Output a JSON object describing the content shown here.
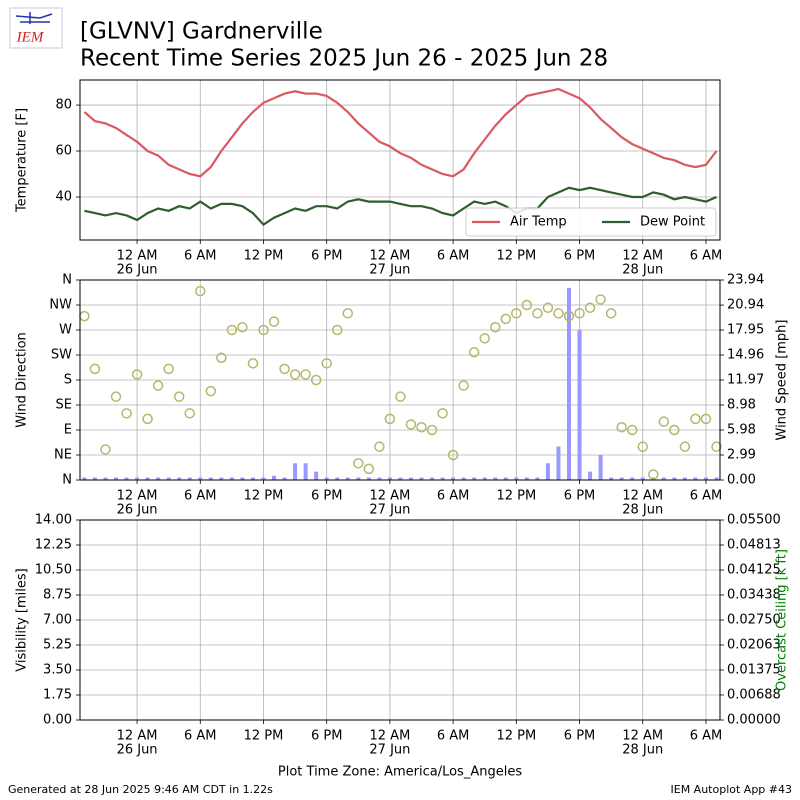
{
  "header": {
    "logo": "IEM",
    "title": "[GLVNV] Gardnerville",
    "subtitle": "Recent Time Series 2025 Jun 26 - 2025 Jun 28"
  },
  "footer": {
    "left": "Generated at 28 Jun 2025 9:46 AM CDT in 1.22s",
    "right": "IEM Autoplot App #43"
  },
  "chart_data": [
    {
      "type": "line",
      "ylabel": "Temperature [F]",
      "grid": true,
      "legend": "lower right",
      "xlim": [
        "2025-06-25T18:35",
        "2025-06-28T07:20"
      ],
      "ylim": [
        21.3,
        90.9
      ],
      "yticks": [
        40,
        60,
        80
      ],
      "xticks": [
        {
          "value": "2025-06-26T00:00",
          "label": [
            "12 AM",
            "26 Jun"
          ]
        },
        {
          "value": "2025-06-26T06:00",
          "label": "6 AM"
        },
        {
          "value": "2025-06-26T12:00",
          "label": "12 PM"
        },
        {
          "value": "2025-06-26T18:00",
          "label": "6 PM"
        },
        {
          "value": "2025-06-27T00:00",
          "label": [
            "12 AM",
            "27 Jun"
          ]
        },
        {
          "value": "2025-06-27T06:00",
          "label": "6 AM"
        },
        {
          "value": "2025-06-27T12:00",
          "label": "12 PM"
        },
        {
          "value": "2025-06-27T18:00",
          "label": "6 PM"
        },
        {
          "value": "2025-06-28T00:00",
          "label": [
            "12 AM",
            "28 Jun"
          ]
        },
        {
          "value": "2025-06-28T06:00",
          "label": "6 AM"
        }
      ],
      "x": [
        "2025-06-25T19:00",
        "2025-06-25T20:00",
        "2025-06-25T21:00",
        "2025-06-25T22:00",
        "2025-06-25T23:00",
        "2025-06-26T00:00",
        "2025-06-26T01:00",
        "2025-06-26T02:00",
        "2025-06-26T03:00",
        "2025-06-26T04:00",
        "2025-06-26T05:00",
        "2025-06-26T06:00",
        "2025-06-26T07:00",
        "2025-06-26T08:00",
        "2025-06-26T09:00",
        "2025-06-26T10:00",
        "2025-06-26T11:00",
        "2025-06-26T12:00",
        "2025-06-26T13:00",
        "2025-06-26T14:00",
        "2025-06-26T15:00",
        "2025-06-26T16:00",
        "2025-06-26T17:00",
        "2025-06-26T18:00",
        "2025-06-26T19:00",
        "2025-06-26T20:00",
        "2025-06-26T21:00",
        "2025-06-26T22:00",
        "2025-06-26T23:00",
        "2025-06-27T00:00",
        "2025-06-27T01:00",
        "2025-06-27T02:00",
        "2025-06-27T03:00",
        "2025-06-27T04:00",
        "2025-06-27T05:00",
        "2025-06-27T06:00",
        "2025-06-27T07:00",
        "2025-06-27T08:00",
        "2025-06-27T09:00",
        "2025-06-27T10:00",
        "2025-06-27T11:00",
        "2025-06-27T12:00",
        "2025-06-27T13:00",
        "2025-06-27T14:00",
        "2025-06-27T15:00",
        "2025-06-27T16:00",
        "2025-06-27T17:00",
        "2025-06-27T18:00",
        "2025-06-27T19:00",
        "2025-06-27T20:00",
        "2025-06-27T21:00",
        "2025-06-27T22:00",
        "2025-06-27T23:00",
        "2025-06-28T00:00",
        "2025-06-28T01:00",
        "2025-06-28T02:00",
        "2025-06-28T03:00",
        "2025-06-28T04:00",
        "2025-06-28T05:00",
        "2025-06-28T06:00",
        "2025-06-28T07:00"
      ],
      "series": [
        {
          "name": "Air Temp",
          "color": "#d9595f",
          "values": [
            77,
            73,
            72,
            70,
            67,
            64,
            60,
            58,
            54,
            52,
            50,
            49,
            53,
            60,
            66,
            72,
            77,
            81,
            83,
            85,
            86,
            85,
            85,
            84,
            81,
            77,
            72,
            68,
            64,
            62,
            59,
            57,
            54,
            52,
            50,
            49,
            52,
            59,
            65,
            71,
            76,
            80,
            84,
            85,
            86,
            87,
            85,
            83,
            79,
            74,
            70,
            66,
            63,
            61,
            59,
            57,
            56,
            54,
            53,
            54,
            60
          ]
        },
        {
          "name": "Dew Point",
          "color": "#2e5e2e",
          "values": [
            34,
            33,
            32,
            33,
            32,
            30,
            33,
            35,
            34,
            36,
            35,
            38,
            35,
            37,
            37,
            36,
            33,
            28,
            31,
            33,
            35,
            34,
            36,
            36,
            35,
            38,
            39,
            38,
            38,
            38,
            37,
            36,
            36,
            35,
            33,
            32,
            35,
            38,
            37,
            38,
            36,
            33,
            35,
            35,
            40,
            42,
            44,
            43,
            44,
            43,
            42,
            41,
            40,
            40,
            42,
            41,
            39,
            40,
            39,
            38,
            40
          ]
        }
      ]
    },
    {
      "type": "scatter",
      "ylabel": "Wind Direction",
      "y2label": "Wind Speed [mph]",
      "grid": true,
      "xlim": [
        "2025-06-25T18:35",
        "2025-06-28T07:20"
      ],
      "ylim": [
        0,
        360
      ],
      "yticks": [
        {
          "value": 0,
          "label": "N"
        },
        {
          "value": 45,
          "label": "NE"
        },
        {
          "value": 90,
          "label": "E"
        },
        {
          "value": 135,
          "label": "SE"
        },
        {
          "value": 180,
          "label": "S"
        },
        {
          "value": 225,
          "label": "SW"
        },
        {
          "value": 270,
          "label": "W"
        },
        {
          "value": 315,
          "label": "NW"
        },
        {
          "value": 360,
          "label": "N"
        }
      ],
      "y2lim": [
        0,
        23.94
      ],
      "y2ticks": [
        {
          "value": 0,
          "label": "0.00"
        },
        2.99,
        5.98,
        8.98,
        11.97,
        14.96,
        17.95,
        20.94,
        23.94
      ],
      "xticks": [
        {
          "value": "2025-06-26T00:00",
          "label": [
            "12 AM",
            "26 Jun"
          ]
        },
        {
          "value": "2025-06-26T06:00",
          "label": "6 AM"
        },
        {
          "value": "2025-06-26T12:00",
          "label": "12 PM"
        },
        {
          "value": "2025-06-26T18:00",
          "label": "6 PM"
        },
        {
          "value": "2025-06-27T00:00",
          "label": [
            "12 AM",
            "27 Jun"
          ]
        },
        {
          "value": "2025-06-27T06:00",
          "label": "6 AM"
        },
        {
          "value": "2025-06-27T12:00",
          "label": "12 PM"
        },
        {
          "value": "2025-06-27T18:00",
          "label": "6 PM"
        },
        {
          "value": "2025-06-28T00:00",
          "label": [
            "12 AM",
            "28 Jun"
          ]
        },
        {
          "value": "2025-06-28T06:00",
          "label": "6 AM"
        }
      ],
      "x": [
        "2025-06-25T19:00",
        "2025-06-25T20:00",
        "2025-06-25T21:00",
        "2025-06-25T22:00",
        "2025-06-25T23:00",
        "2025-06-26T00:00",
        "2025-06-26T01:00",
        "2025-06-26T02:00",
        "2025-06-26T03:00",
        "2025-06-26T04:00",
        "2025-06-26T05:00",
        "2025-06-26T06:00",
        "2025-06-26T07:00",
        "2025-06-26T08:00",
        "2025-06-26T09:00",
        "2025-06-26T10:00",
        "2025-06-26T11:00",
        "2025-06-26T12:00",
        "2025-06-26T13:00",
        "2025-06-26T14:00",
        "2025-06-26T15:00",
        "2025-06-26T16:00",
        "2025-06-26T17:00",
        "2025-06-26T18:00",
        "2025-06-26T19:00",
        "2025-06-26T20:00",
        "2025-06-26T21:00",
        "2025-06-26T22:00",
        "2025-06-26T23:00",
        "2025-06-27T00:00",
        "2025-06-27T01:00",
        "2025-06-27T02:00",
        "2025-06-27T03:00",
        "2025-06-27T04:00",
        "2025-06-27T05:00",
        "2025-06-27T06:00",
        "2025-06-27T07:00",
        "2025-06-27T08:00",
        "2025-06-27T09:00",
        "2025-06-27T10:00",
        "2025-06-27T11:00",
        "2025-06-27T12:00",
        "2025-06-27T13:00",
        "2025-06-27T14:00",
        "2025-06-27T15:00",
        "2025-06-27T16:00",
        "2025-06-27T17:00",
        "2025-06-27T18:00",
        "2025-06-27T19:00",
        "2025-06-27T20:00",
        "2025-06-27T21:00",
        "2025-06-27T22:00",
        "2025-06-27T23:00",
        "2025-06-28T00:00",
        "2025-06-28T01:00",
        "2025-06-28T02:00",
        "2025-06-28T03:00",
        "2025-06-28T04:00",
        "2025-06-28T05:00",
        "2025-06-28T06:00",
        "2025-06-28T07:00"
      ],
      "series": [
        {
          "type": "bar",
          "axis": "y2",
          "color": "#9999ff",
          "values": [
            0.3,
            0.3,
            0.3,
            0.3,
            0.3,
            0.3,
            0.3,
            0.3,
            0.3,
            0.3,
            0.3,
            0.3,
            0.3,
            0.3,
            0.3,
            0.3,
            0.3,
            0.3,
            0.5,
            0.3,
            2,
            2,
            1,
            0.3,
            0.3,
            0.3,
            0.3,
            0.3,
            0.3,
            0.3,
            0.3,
            0.3,
            0.3,
            0.3,
            0.3,
            0.3,
            0.3,
            0.3,
            0.3,
            0.3,
            0.3,
            0.3,
            0.3,
            0.3,
            2,
            4,
            23,
            18,
            1,
            3,
            0.3,
            0.3,
            0.3,
            0.3,
            0.3,
            0.3,
            0.3,
            0.3,
            0.3,
            0.3,
            0.3
          ]
        },
        {
          "type": "scatter",
          "color": "#b5b66a",
          "values": [
            295,
            200,
            55,
            150,
            120,
            190,
            110,
            170,
            200,
            150,
            120,
            340,
            160,
            220,
            270,
            275,
            210,
            270,
            285,
            200,
            190,
            190,
            180,
            210,
            270,
            300,
            30,
            20,
            60,
            110,
            150,
            100,
            95,
            90,
            120,
            45,
            170,
            230,
            255,
            275,
            290,
            300,
            315,
            300,
            310,
            300,
            295,
            300,
            310,
            325,
            300,
            95,
            90,
            60,
            10,
            105,
            90,
            60,
            110,
            110,
            60
          ]
        }
      ]
    },
    {
      "type": "line",
      "ylabel": "Visibility [miles]",
      "y2label": "Overcast Ceiling [k ft]",
      "y2label_color": "#008000",
      "grid": true,
      "xlabel": "Plot Time Zone: America/Los_Angeles",
      "xlim": [
        "2025-06-25T18:35",
        "2025-06-28T07:20"
      ],
      "ylim": [
        0,
        14
      ],
      "yticks": [
        {
          "value": 0,
          "label": "0.00"
        },
        1.75,
        {
          "value": 3.5,
          "label": "3.50"
        },
        5.25,
        {
          "value": 7,
          "label": "7.00"
        },
        8.75,
        {
          "value": 10.5,
          "label": "10.50"
        },
        12.25,
        {
          "value": 14,
          "label": "14.00"
        }
      ],
      "y2lim": [
        0,
        0.055
      ],
      "y2ticks": [
        {
          "value": 0,
          "label": "0.00000"
        },
        0.00688,
        0.01375,
        0.02063,
        {
          "value": 0.0275,
          "label": "0.02750"
        },
        0.03438,
        0.04125,
        0.04813,
        {
          "value": 0.055,
          "label": "0.05500"
        }
      ],
      "xticks": [
        {
          "value": "2025-06-26T00:00",
          "label": [
            "12 AM",
            "26 Jun"
          ]
        },
        {
          "value": "2025-06-26T06:00",
          "label": "6 AM"
        },
        {
          "value": "2025-06-26T12:00",
          "label": "12 PM"
        },
        {
          "value": "2025-06-26T18:00",
          "label": "6 PM"
        },
        {
          "value": "2025-06-27T00:00",
          "label": [
            "12 AM",
            "27 Jun"
          ]
        },
        {
          "value": "2025-06-27T06:00",
          "label": "6 AM"
        },
        {
          "value": "2025-06-27T12:00",
          "label": "12 PM"
        },
        {
          "value": "2025-06-27T18:00",
          "label": "6 PM"
        },
        {
          "value": "2025-06-28T00:00",
          "label": [
            "12 AM",
            "28 Jun"
          ]
        },
        {
          "value": "2025-06-28T06:00",
          "label": "6 AM"
        }
      ],
      "series": []
    }
  ]
}
